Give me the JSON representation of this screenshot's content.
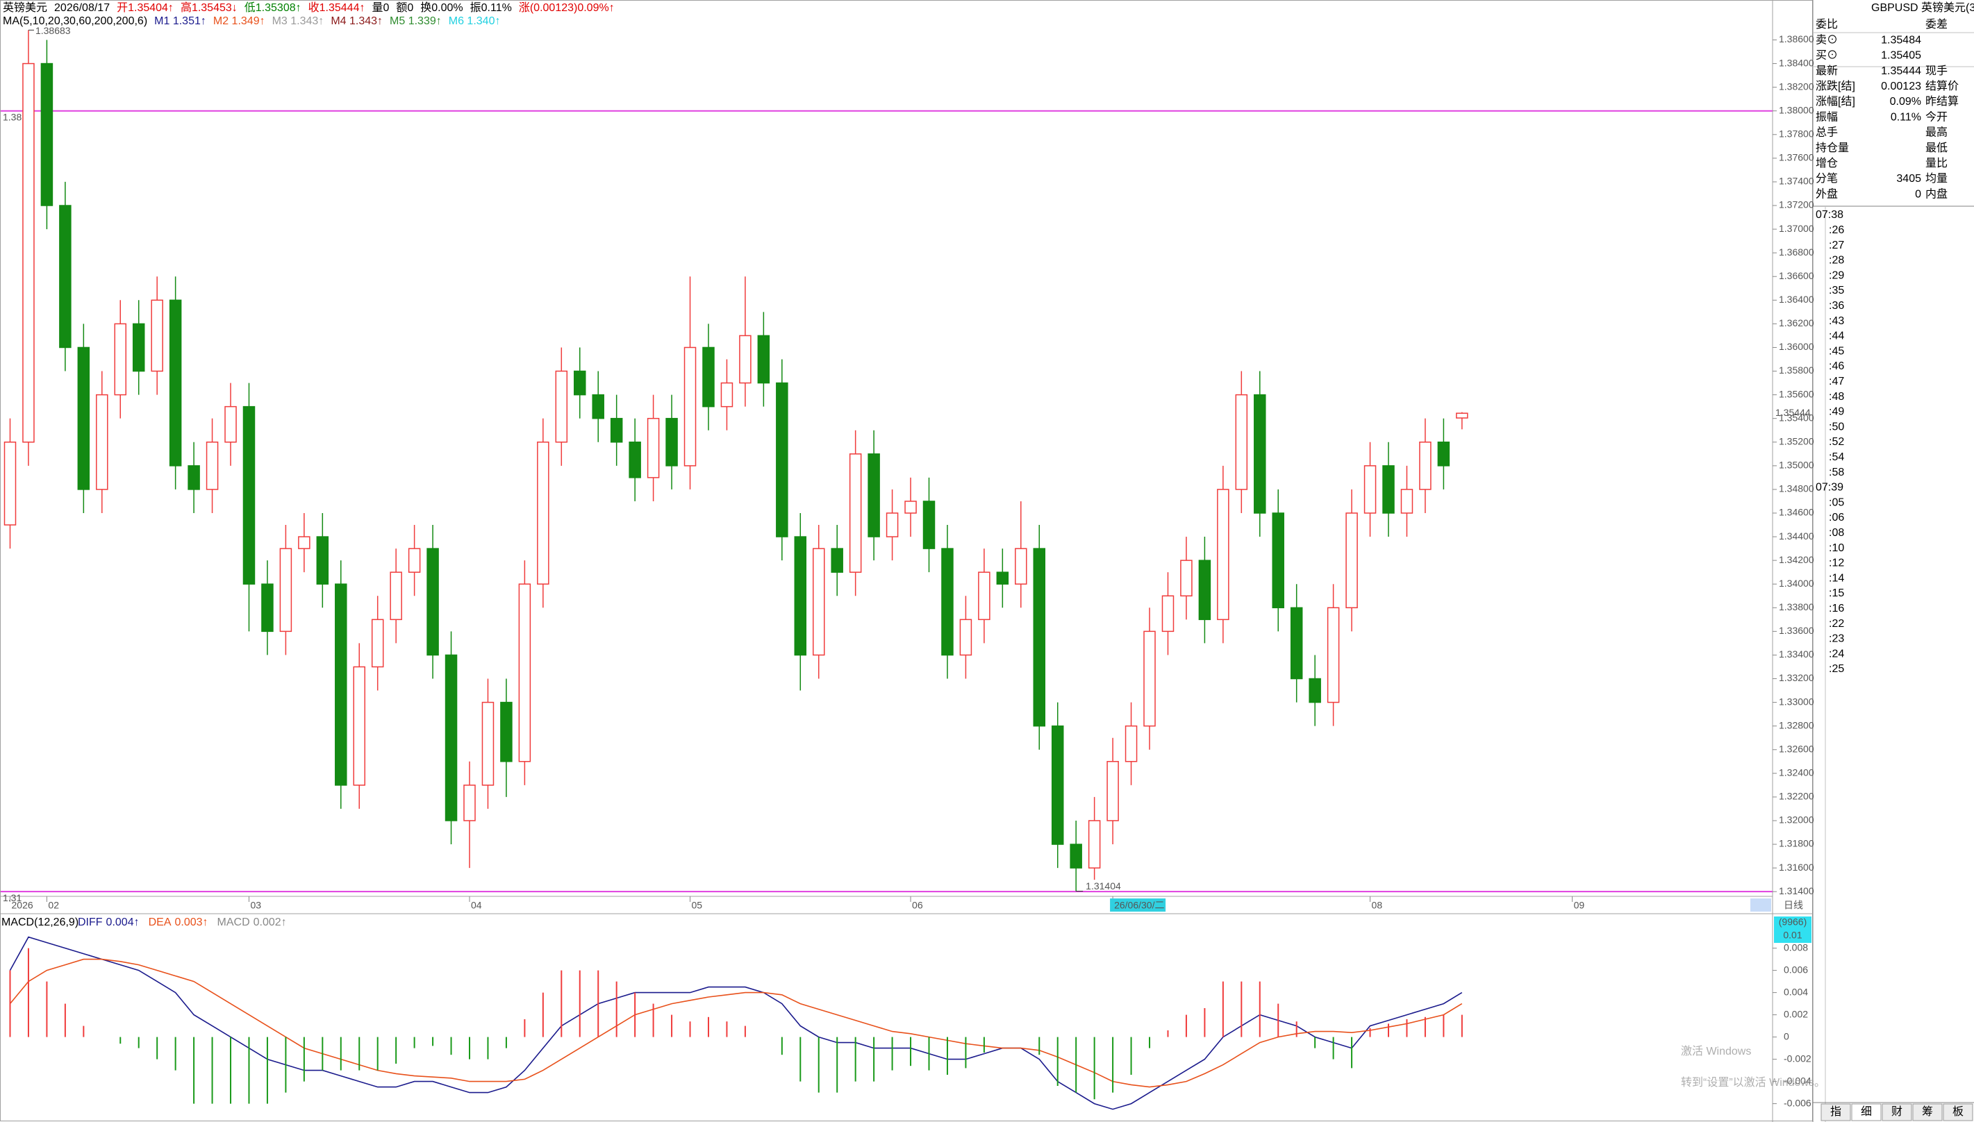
{
  "header": {
    "quote": [
      {
        "text": "英镑美元",
        "color": "#000000"
      },
      {
        "text": "2026/08/17",
        "color": "#000000"
      },
      {
        "text": "开1.35404↑",
        "color": "#e00000"
      },
      {
        "text": "高1.35453↓",
        "color": "#e00000"
      },
      {
        "text": "低1.35308↑",
        "color": "#008000"
      },
      {
        "text": "收1.35444↑",
        "color": "#e00000"
      },
      {
        "text": "量0",
        "color": "#000000"
      },
      {
        "text": "额0",
        "color": "#000000"
      },
      {
        "text": "换0.00%",
        "color": "#000000"
      },
      {
        "text": "振0.11%",
        "color": "#000000"
      },
      {
        "text": "涨(0.00123)0.09%↑",
        "color": "#e00000"
      }
    ],
    "ma": [
      {
        "text": "MA(5,10,20,30,60,200,200,6)",
        "color": "#000000"
      },
      {
        "text": "M1 1.351↑",
        "color": "#1a1a8c"
      },
      {
        "text": "M2 1.349↑",
        "color": "#e8501a"
      },
      {
        "text": "M3 1.343↑",
        "color": "#999999"
      },
      {
        "text": "M4 1.343↑",
        "color": "#8b1a1a"
      },
      {
        "text": "M5 1.339↑",
        "color": "#2e8b2e"
      },
      {
        "text": "M6 1.340↑",
        "color": "#20d0e0"
      }
    ]
  },
  "chart_data": [
    {
      "type": "candlestick",
      "categories": [
        "2026",
        null,
        "02",
        null,
        null,
        null,
        null,
        null,
        null,
        null,
        null,
        null,
        null,
        "03",
        null,
        null,
        null,
        null,
        null,
        null,
        null,
        null,
        null,
        null,
        null,
        "04",
        null,
        null,
        null,
        null,
        null,
        null,
        null,
        null,
        null,
        null,
        null,
        "05",
        null,
        null,
        null,
        null,
        null,
        null,
        null,
        null,
        null,
        null,
        null,
        "06",
        null,
        null,
        null,
        null,
        null,
        null,
        null,
        null,
        null,
        null,
        "26/06/30/二",
        null,
        null,
        null,
        null,
        null,
        null,
        null,
        null,
        null,
        null,
        null,
        null,
        null,
        "08",
        null,
        null,
        null,
        null,
        null,
        null,
        null,
        null,
        null,
        null,
        "09"
      ],
      "open": [
        1.345,
        1.352,
        1.384,
        1.372,
        1.36,
        1.348,
        1.356,
        1.362,
        1.358,
        1.364,
        1.35,
        1.348,
        1.352,
        1.355,
        1.34,
        1.336,
        1.343,
        1.344,
        1.34,
        1.323,
        1.333,
        1.337,
        1.341,
        1.343,
        1.334,
        1.32,
        1.323,
        1.33,
        1.325,
        1.34,
        1.352,
        1.358,
        1.356,
        1.354,
        1.352,
        1.349,
        1.354,
        1.35,
        1.36,
        1.355,
        1.357,
        1.361,
        1.357,
        1.344,
        1.334,
        1.343,
        1.341,
        1.351,
        1.344,
        1.346,
        1.347,
        1.343,
        1.334,
        1.337,
        1.341,
        1.34,
        1.343,
        1.328,
        1.318,
        1.316,
        1.32,
        1.325,
        1.328,
        1.336,
        1.339,
        1.342,
        1.337,
        1.348,
        1.356,
        1.346,
        1.338,
        1.332,
        1.33,
        1.338,
        1.346,
        1.35,
        1.346,
        1.348,
        1.352,
        1.35404,
        null,
        null,
        null,
        null,
        null,
        null
      ],
      "high": [
        1.354,
        1.38683,
        1.386,
        1.374,
        1.362,
        1.358,
        1.364,
        1.364,
        1.366,
        1.366,
        1.352,
        1.354,
        1.357,
        1.357,
        1.342,
        1.345,
        1.346,
        1.346,
        1.342,
        1.335,
        1.339,
        1.343,
        1.345,
        1.345,
        1.336,
        1.325,
        1.332,
        1.332,
        1.342,
        1.354,
        1.36,
        1.36,
        1.358,
        1.356,
        1.354,
        1.356,
        1.356,
        1.366,
        1.362,
        1.359,
        1.366,
        1.363,
        1.359,
        1.346,
        1.345,
        1.345,
        1.353,
        1.353,
        1.348,
        1.349,
        1.349,
        1.345,
        1.339,
        1.343,
        1.343,
        1.347,
        1.345,
        1.33,
        1.32,
        1.322,
        1.327,
        1.33,
        1.338,
        1.341,
        1.344,
        1.344,
        1.35,
        1.358,
        1.358,
        1.348,
        1.34,
        1.334,
        1.34,
        1.348,
        1.352,
        1.352,
        1.35,
        1.354,
        1.354,
        1.35453,
        null,
        null,
        null,
        null,
        null,
        null
      ],
      "low": [
        1.343,
        1.35,
        1.37,
        1.358,
        1.346,
        1.346,
        1.354,
        1.356,
        1.356,
        1.348,
        1.346,
        1.346,
        1.35,
        1.336,
        1.334,
        1.334,
        1.341,
        1.338,
        1.321,
        1.321,
        1.331,
        1.335,
        1.339,
        1.332,
        1.318,
        1.316,
        1.321,
        1.322,
        1.323,
        1.338,
        1.35,
        1.354,
        1.352,
        1.35,
        1.347,
        1.347,
        1.348,
        1.348,
        1.353,
        1.353,
        1.355,
        1.355,
        1.342,
        1.331,
        1.332,
        1.339,
        1.339,
        1.342,
        1.342,
        1.344,
        1.341,
        1.332,
        1.332,
        1.335,
        1.338,
        1.338,
        1.326,
        1.316,
        1.31404,
        1.315,
        1.318,
        1.323,
        1.326,
        1.334,
        1.337,
        1.335,
        1.335,
        1.346,
        1.344,
        1.336,
        1.33,
        1.328,
        1.328,
        1.336,
        1.344,
        1.344,
        1.344,
        1.346,
        1.348,
        1.35308,
        null,
        null,
        null,
        null,
        null,
        null
      ],
      "close": [
        1.352,
        1.384,
        1.372,
        1.36,
        1.348,
        1.356,
        1.362,
        1.358,
        1.364,
        1.35,
        1.348,
        1.352,
        1.355,
        1.34,
        1.336,
        1.343,
        1.344,
        1.34,
        1.323,
        1.333,
        1.337,
        1.341,
        1.343,
        1.334,
        1.32,
        1.323,
        1.33,
        1.325,
        1.34,
        1.352,
        1.358,
        1.356,
        1.354,
        1.352,
        1.349,
        1.354,
        1.35,
        1.36,
        1.355,
        1.357,
        1.361,
        1.357,
        1.344,
        1.334,
        1.343,
        1.341,
        1.351,
        1.344,
        1.346,
        1.347,
        1.343,
        1.334,
        1.337,
        1.341,
        1.34,
        1.343,
        1.328,
        1.318,
        1.316,
        1.32,
        1.325,
        1.328,
        1.336,
        1.339,
        1.342,
        1.337,
        1.348,
        1.356,
        1.346,
        1.338,
        1.332,
        1.33,
        1.338,
        1.346,
        1.35,
        1.346,
        1.348,
        1.352,
        1.35,
        1.35444,
        null,
        null,
        null,
        null,
        null,
        null
      ],
      "up_color": "#f03c3c",
      "down_color": "#138a13",
      "ylim": [
        1.3136,
        1.3882
      ],
      "yticks": [
        {
          "value": 1.314,
          "label": "1.31400"
        },
        {
          "value": 1.316,
          "label": "1.31600"
        },
        {
          "value": 1.318,
          "label": "1.31800"
        },
        {
          "value": 1.32,
          "label": "1.32000"
        },
        {
          "value": 1.322,
          "label": "1.32200"
        },
        {
          "value": 1.324,
          "label": "1.32400"
        },
        {
          "value": 1.326,
          "label": "1.32600"
        },
        {
          "value": 1.328,
          "label": "1.32800"
        },
        {
          "value": 1.33,
          "label": "1.33000"
        },
        {
          "value": 1.332,
          "label": "1.33200"
        },
        {
          "value": 1.334,
          "label": "1.33400"
        },
        {
          "value": 1.336,
          "label": "1.33600"
        },
        {
          "value": 1.338,
          "label": "1.33800"
        },
        {
          "value": 1.34,
          "label": "1.34000"
        },
        {
          "value": 1.342,
          "label": "1.34200"
        },
        {
          "value": 1.344,
          "label": "1.34400"
        },
        {
          "value": 1.346,
          "label": "1.34600"
        },
        {
          "value": 1.348,
          "label": "1.34800"
        },
        {
          "value": 1.35,
          "label": "1.35000"
        },
        {
          "value": 1.352,
          "label": "1.35200"
        },
        {
          "value": 1.354,
          "label": "1.35400"
        },
        {
          "value": 1.356,
          "label": "1.35600"
        },
        {
          "value": 1.358,
          "label": "1.35800"
        },
        {
          "value": 1.36,
          "label": "1.36000"
        },
        {
          "value": 1.362,
          "label": "1.36200"
        },
        {
          "value": 1.364,
          "label": "1.36400"
        },
        {
          "value": 1.366,
          "label": "1.36600"
        },
        {
          "value": 1.368,
          "label": "1.36800"
        },
        {
          "value": 1.37,
          "label": "1.37000"
        },
        {
          "value": 1.372,
          "label": "1.37200"
        },
        {
          "value": 1.374,
          "label": "1.37400"
        },
        {
          "value": 1.376,
          "label": "1.37600"
        },
        {
          "value": 1.378,
          "label": "1.37800"
        },
        {
          "value": 1.38,
          "label": "1.38000"
        },
        {
          "value": 1.382,
          "label": "1.38200"
        },
        {
          "value": 1.384,
          "label": "1.38400"
        },
        {
          "value": 1.386,
          "label": "1.38600"
        }
      ],
      "grid": false,
      "reference_lines": [
        {
          "value": 1.38,
          "label": "1.38",
          "color": "#e040e0"
        },
        {
          "value": 1.314,
          "label": "1.31",
          "color": "#e040e0"
        }
      ],
      "period_label": "日线"
    },
    {
      "type": "macd",
      "title": "MACD(12,26,9)",
      "series": [
        {
          "name": "DIFF",
          "legend": "0.004↑",
          "color": "#1a1a8c",
          "style": "line",
          "values": [
            0.006,
            0.009,
            0.0085,
            0.008,
            0.0075,
            0.007,
            0.0065,
            0.006,
            0.005,
            0.004,
            0.002,
            0.001,
            0,
            -0.001,
            -0.002,
            -0.0025,
            -0.003,
            -0.003,
            -0.0035,
            -0.004,
            -0.0045,
            -0.0045,
            -0.004,
            -0.004,
            -0.0045,
            -0.005,
            -0.005,
            -0.0045,
            -0.003,
            -0.001,
            0.001,
            0.002,
            0.003,
            0.0035,
            0.004,
            0.004,
            0.004,
            0.004,
            0.0045,
            0.0045,
            0.0045,
            0.004,
            0.003,
            0.001,
            0,
            -0.0005,
            -0.0005,
            -0.001,
            -0.001,
            -0.001,
            -0.0015,
            -0.002,
            -0.002,
            -0.0015,
            -0.001,
            -0.001,
            -0.002,
            -0.004,
            -0.005,
            -0.006,
            -0.0065,
            -0.006,
            -0.005,
            -0.004,
            -0.003,
            -0.002,
            0,
            0.001,
            0.002,
            0.0015,
            0.001,
            0,
            -0.0005,
            -0.001,
            0.001,
            0.0015,
            0.002,
            0.0025,
            0.003,
            0.004,
            null,
            null,
            null,
            null,
            null,
            null
          ]
        },
        {
          "name": "DEA",
          "legend": "0.003↑",
          "color": "#e8501a",
          "style": "line",
          "values": [
            0.003,
            0.005,
            0.006,
            0.0065,
            0.007,
            0.007,
            0.0068,
            0.0065,
            0.006,
            0.0055,
            0.005,
            0.004,
            0.003,
            0.002,
            0.001,
            0,
            -0.001,
            -0.0015,
            -0.002,
            -0.0025,
            -0.003,
            -0.0033,
            -0.0035,
            -0.0036,
            -0.0037,
            -0.004,
            -0.004,
            -0.004,
            -0.0038,
            -0.003,
            -0.002,
            -0.001,
            0,
            0.001,
            0.002,
            0.0025,
            0.003,
            0.0033,
            0.0036,
            0.0038,
            0.004,
            0.004,
            0.0038,
            0.003,
            0.0025,
            0.002,
            0.0015,
            0.001,
            0.0005,
            0.0003,
            0,
            -0.0003,
            -0.0006,
            -0.0008,
            -0.001,
            -0.001,
            -0.0012,
            -0.0018,
            -0.0025,
            -0.0032,
            -0.004,
            -0.0043,
            -0.0045,
            -0.0043,
            -0.004,
            -0.0033,
            -0.0025,
            -0.0015,
            -0.0005,
            0,
            0.0003,
            0.0005,
            0.0005,
            0.0004,
            0.0006,
            0.0009,
            0.0012,
            0.0016,
            0.002,
            0.003,
            null,
            null,
            null,
            null,
            null,
            null
          ]
        },
        {
          "name": "MACD",
          "legend": "0.002↑",
          "color": "#888888",
          "style": "histogram",
          "up_color": "#f03c3c",
          "down_color": "#1a9a1a",
          "values": [
            0.006,
            0.008,
            0.005,
            0.003,
            0.001,
            0,
            -0.0006,
            -0.001,
            -0.002,
            -0.003,
            -0.006,
            -0.006,
            -0.006,
            -0.006,
            -0.006,
            -0.005,
            -0.004,
            -0.003,
            -0.003,
            -0.003,
            -0.003,
            -0.0024,
            -0.001,
            -0.0008,
            -0.0016,
            -0.002,
            -0.002,
            -0.001,
            0.0016,
            0.004,
            0.006,
            0.006,
            0.006,
            0.005,
            0.004,
            0.003,
            0.002,
            0.0014,
            0.0018,
            0.0014,
            0.001,
            0,
            -0.0016,
            -0.004,
            -0.005,
            -0.005,
            -0.004,
            -0.004,
            -0.003,
            -0.0026,
            -0.003,
            -0.0034,
            -0.0028,
            -0.0014,
            0,
            0,
            -0.0016,
            -0.0044,
            -0.005,
            -0.0056,
            -0.005,
            -0.0034,
            -0.001,
            0.0006,
            0.002,
            0.0026,
            0.005,
            0.005,
            0.005,
            0.003,
            0.0014,
            -0.001,
            -0.002,
            -0.0028,
            0.0008,
            0.0012,
            0.0016,
            0.0018,
            0.002,
            0.002,
            null,
            null,
            null,
            null,
            null,
            null
          ]
        }
      ],
      "ylim": [
        -0.0074,
        0.0096
      ],
      "yticks": [
        0.008,
        0.006,
        0.004,
        0.002,
        0,
        -0.002,
        -0.004,
        -0.006
      ],
      "scale_box": [
        "(9966)",
        "0.01"
      ]
    }
  ],
  "quote_panel": {
    "title": "GBPUSD 英镑美元(3",
    "rows": [
      {
        "label": "委比",
        "right": "委差"
      },
      {
        "label": "卖⊙",
        "value": "1.35484",
        "color": "#e00000"
      },
      {
        "label": "买⊙",
        "value": "1.35405",
        "color": "#e00000"
      },
      {
        "label": "最新",
        "value": "1.35444",
        "color": "#e00000",
        "right": "现手"
      },
      {
        "label": "涨跌[结]",
        "value": "0.00123",
        "color": "#e00000",
        "right": "结算价"
      },
      {
        "label": "涨幅[结]",
        "value": "0.09%",
        "color": "#e00000",
        "right": "昨结算"
      },
      {
        "label": "振幅",
        "value": "0.11%",
        "color": "#000000",
        "right": "今开"
      },
      {
        "label": "总手",
        "right": "最高"
      },
      {
        "label": "持仓量",
        "right": "最低"
      },
      {
        "label": "增仓",
        "right": "量比"
      },
      {
        "label": "分笔",
        "value": "3405",
        "color": "#000000",
        "right": "均量"
      },
      {
        "label": "外盘",
        "value": "0",
        "color": "#e00000",
        "right": "内盘"
      }
    ]
  },
  "tick_times": [
    "07:38",
    ":26",
    ":27",
    ":28",
    ":29",
    ":35",
    ":36",
    ":43",
    ":44",
    ":45",
    ":46",
    ":47",
    ":48",
    ":49",
    ":50",
    ":52",
    ":54",
    ":58",
    "07:39",
    ":05",
    ":06",
    ":08",
    ":10",
    ":12",
    ":14",
    ":15",
    ":16",
    ":22",
    ":23",
    ":24",
    ":25"
  ],
  "watermark": [
    "激活 Windows",
    "转到“设置”以激活 Windows。"
  ],
  "tabs": [
    "指",
    "细",
    "财",
    "筹",
    "板"
  ]
}
